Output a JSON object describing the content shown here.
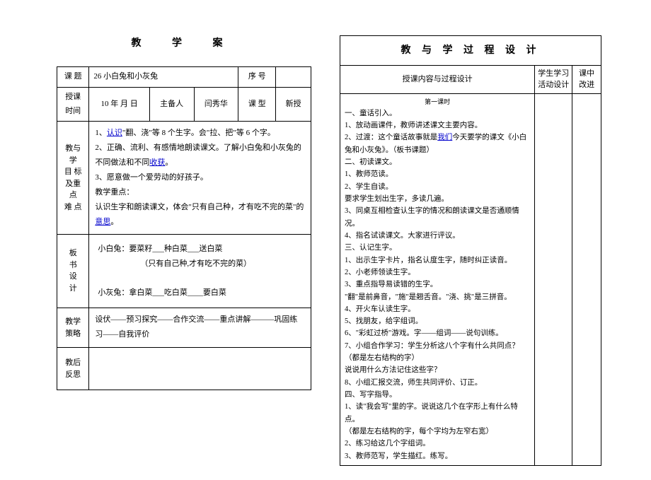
{
  "left": {
    "page_title": "教 学 案",
    "row1": {
      "topic_label": "课 题",
      "topic": "26 小白兔和小灰兔",
      "seq_label": "序 号",
      "seq": ""
    },
    "row2": {
      "time_label": "授课时间",
      "time": "10 年 月 日",
      "host_label": "主备人",
      "host": "闫秀华",
      "type_label": "课 型",
      "type": "新授"
    },
    "goals_label": "教与学目标及重点难点",
    "goals_lines": [
      "1、",
      "认识",
      "\"翻、浇\"等 8 个生字。会\"拉、把\"等 6 个字。",
      "2、正确、流利、有感情地朗读课文。了解小白兔和小灰兔的不同做法和不同",
      "收获",
      "。",
      "3、愿意做一个爱劳动的好孩子。",
      "教学重点：",
      "认识生字和朗读课文，体会\"只有自己种，才有吃不完的菜\"的",
      "意思",
      "。"
    ],
    "board_label": "板书设计",
    "board_lines": [
      "小白兔：要菜籽___种白菜___送白菜",
      "（只有自己种,才有吃不完的菜）",
      "小灰兔：拿白菜___吃白菜____要白菜"
    ],
    "strategy_label": "教学策略",
    "strategy": "设伏——预习探究——合作交流——重点讲解———巩固练习——自我评价",
    "reflect_label": "教后反思"
  },
  "right": {
    "page_title": "教 与 学 过 程 设 计",
    "col1": "授课内容与过程设计",
    "col2": "学生学习活动设计",
    "col3": "课中改进",
    "section_title": "第一课时",
    "body": "一、童话引入。\n1、放动画课件，教师讲述课文主要内容。\n2、过渡：这个童话故事就是<span class=\"link\">我们</span>今天要学的课文《小白兔和小灰兔》。（板书课题）\n二、初读课文。\n1、教师范读。\n2、学生自读。\n要求学生划出生字，多读几遍。\n3、同桌互相检查认生字的情况和朗读课文是否通顺情况。\n4、指名试读课文。大家进行评议。\n三、认记生字。\n1、出示生字卡片，指名认度生字，随时纠正读音。\n2、小老师领读生字。\n3、重点指导易读错的生字。\n\"翻\"是前鼻音，\"施\"是翘舌音。\"浇、挑\"是三拼音。\n4、开火车认读生字。\n5、找朋友，给字组词。\n6、\"彩虹过桥\"游戏。字——组词——说句训练。\n7、小组合作学习：学生分析这八个字有什么共同点？（都是左右结构的字）\n说说用什么方法记住这些字？\n8、小组汇报交流，师生共同评价、订正。\n四、写字指导。\n1、读\"我会写\"里的字。说说这几个在字形上有什么特点。\n（都是左右结构的字，每个字均为左窄右宽）\n2、练习给这几个字组词。\n3、教师范写，学生描红。练写。"
  }
}
